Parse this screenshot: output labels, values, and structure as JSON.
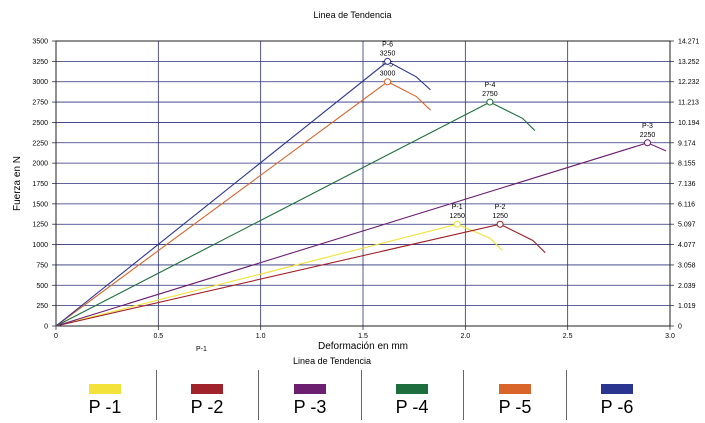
{
  "chart_data": {
    "type": "line",
    "title": "Linea de Tendencia",
    "xlabel": "Deformación en mm",
    "ylabel": "Fuerza en N",
    "bottom_caption": "Linea de Tendencia",
    "axis_mark": "P-1",
    "xlim": [
      0,
      3.0
    ],
    "ylim": [
      0,
      3500
    ],
    "x_ticks": [
      "0",
      "0.5",
      "1.0",
      "1.5",
      "2.0",
      "2.5",
      "3.0"
    ],
    "y_ticks": [
      "0",
      "250",
      "500",
      "750",
      "1000",
      "1250",
      "1500",
      "1750",
      "2000",
      "2250",
      "2500",
      "2750",
      "3000",
      "3250",
      "3500"
    ],
    "y2_ticks": [
      "0",
      "1.019",
      "2.039",
      "3.058",
      "4.077",
      "5.097",
      "6.116",
      "7.136",
      "8.155",
      "9.174",
      "10.194",
      "11.213",
      "12.232",
      "13.252",
      "14.271"
    ],
    "grid": true,
    "series": [
      {
        "name": "P -1",
        "color": "#f2e23a",
        "points": [
          [
            0,
            0
          ],
          [
            1.96,
            1250
          ],
          [
            2.12,
            1080
          ],
          [
            2.18,
            930
          ]
        ],
        "peak": {
          "x": 1.96,
          "y": 1250,
          "label": "P-1",
          "value": "1250"
        }
      },
      {
        "name": "P -2",
        "color": "#a0222a",
        "points": [
          [
            0,
            0
          ],
          [
            2.17,
            1250
          ],
          [
            2.33,
            1050
          ],
          [
            2.39,
            900
          ]
        ],
        "peak": {
          "x": 2.17,
          "y": 1250,
          "label": "P-2",
          "value": "1250"
        }
      },
      {
        "name": "P -3",
        "color": "#6b1f6e",
        "points": [
          [
            0,
            0
          ],
          [
            2.89,
            2250
          ],
          [
            2.98,
            2150
          ]
        ],
        "peak": {
          "x": 2.89,
          "y": 2250,
          "label": "P-3",
          "value": "2250"
        }
      },
      {
        "name": "P -4",
        "color": "#1d6e3c",
        "points": [
          [
            0,
            0
          ],
          [
            2.12,
            2750
          ],
          [
            2.28,
            2550
          ],
          [
            2.34,
            2400
          ]
        ],
        "peak": {
          "x": 2.12,
          "y": 2750,
          "label": "P-4",
          "value": "2750"
        }
      },
      {
        "name": "P -5",
        "color": "#d9652b",
        "points": [
          [
            0,
            0
          ],
          [
            1.62,
            3000
          ],
          [
            1.76,
            2820
          ],
          [
            1.83,
            2650
          ]
        ],
        "peak": {
          "x": 1.62,
          "y": 3000,
          "label": "P-5",
          "value": "3000"
        }
      },
      {
        "name": "P -6",
        "color": "#2a3590",
        "points": [
          [
            0,
            0
          ],
          [
            1.62,
            3250
          ],
          [
            1.76,
            3060
          ],
          [
            1.83,
            2900
          ]
        ],
        "peak": {
          "x": 1.62,
          "y": 3250,
          "label": "P-6",
          "value": "3250"
        }
      }
    ]
  }
}
